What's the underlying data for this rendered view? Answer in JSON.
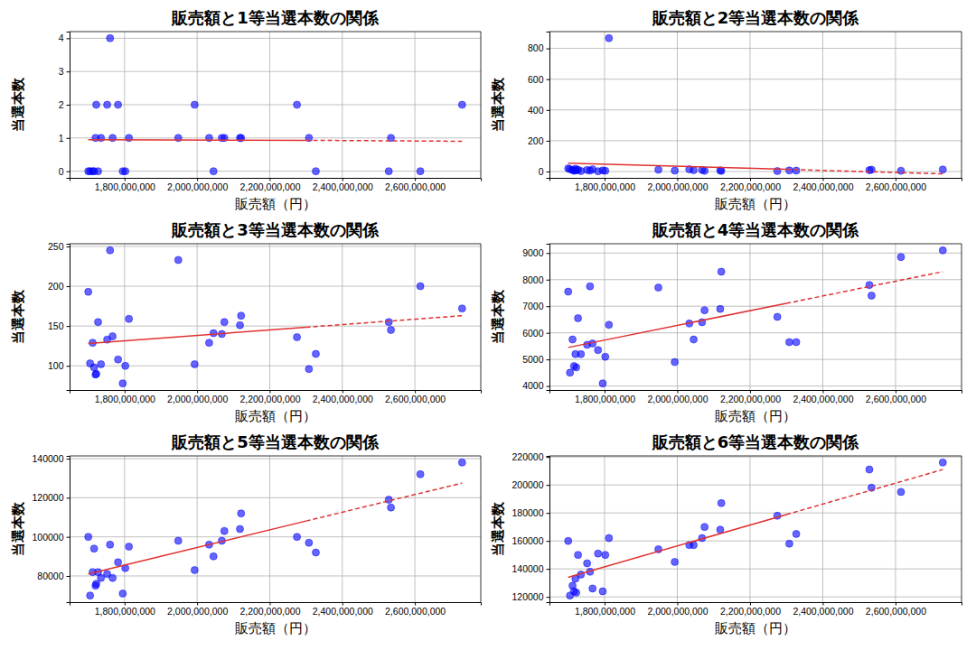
{
  "chart_data": [
    {
      "type": "scatter",
      "title": "販売額と1等当選本数の関係",
      "x_label": "販売額（円）",
      "y_label": "当選本数",
      "x": [
        1700000000,
        1705000000,
        1712000000,
        1716000000,
        1720000000,
        1722000000,
        1727000000,
        1735000000,
        1752000000,
        1760000000,
        1767000000,
        1782000000,
        1795000000,
        1802000000,
        1812000000,
        1948000000,
        1993000000,
        2033000000,
        2045000000,
        2068000000,
        2075000000,
        2118000000,
        2121000000,
        2275000000,
        2308000000,
        2327000000,
        2528000000,
        2534000000,
        2615000000,
        2730000000
      ],
      "series": [
        {
          "type": "scatter",
          "color": "#0000ff",
          "marker": "circle",
          "values": [
            0,
            0,
            0,
            0,
            1,
            2,
            0,
            1,
            2,
            4,
            1,
            2,
            0,
            0,
            1,
            1,
            2,
            1,
            0,
            1,
            1,
            1,
            1,
            2,
            1,
            0,
            0,
            1,
            0,
            2
          ]
        },
        {
          "type": "line",
          "color": "#e03030",
          "line_style": "solid",
          "x": [
            1700000000,
            2300000000
          ],
          "values": [
            0.95,
            0.93
          ]
        },
        {
          "type": "line",
          "color": "#e03030",
          "line_style": "dashed",
          "x": [
            2300000000,
            2730000000
          ],
          "values": [
            0.93,
            0.9
          ]
        }
      ],
      "xlim": [
        1648500000,
        2781500000
      ],
      "xticks": [
        {
          "value": 1800000000,
          "label": "1,800,000,000"
        },
        {
          "value": 2000000000,
          "label": "2,000,000,000"
        },
        {
          "value": 2200000000,
          "label": "2,200,000,000"
        },
        {
          "value": 2400000000,
          "label": "2,400,000,000"
        },
        {
          "value": 2600000000,
          "label": "2,600,000,000"
        }
      ],
      "ylim": [
        -0.2,
        4.2
      ],
      "yticks": [
        0,
        1,
        2,
        3,
        4
      ],
      "grid": true
    },
    {
      "type": "scatter",
      "title": "販売額と2等当選本数の関係",
      "x_label": "販売額（円）",
      "y_label": "当選本数",
      "x": [
        1700000000,
        1705000000,
        1712000000,
        1716000000,
        1720000000,
        1722000000,
        1727000000,
        1735000000,
        1752000000,
        1760000000,
        1767000000,
        1782000000,
        1795000000,
        1802000000,
        1812000000,
        1948000000,
        1993000000,
        2033000000,
        2045000000,
        2068000000,
        2075000000,
        2118000000,
        2121000000,
        2275000000,
        2308000000,
        2327000000,
        2528000000,
        2534000000,
        2615000000,
        2730000000
      ],
      "series": [
        {
          "type": "scatter",
          "color": "#0000ff",
          "marker": "circle",
          "values": [
            20,
            15,
            10,
            5,
            18,
            8,
            12,
            3,
            10,
            6,
            14,
            2,
            7,
            5,
            866,
            12,
            6,
            14,
            9,
            10,
            5,
            8,
            4,
            3,
            7,
            6,
            9,
            12,
            5,
            13
          ]
        },
        {
          "type": "line",
          "color": "#e03030",
          "line_style": "solid",
          "x": [
            1700000000,
            2300000000
          ],
          "values": [
            55,
            14
          ]
        },
        {
          "type": "line",
          "color": "#e03030",
          "line_style": "dashed",
          "x": [
            2300000000,
            2730000000
          ],
          "values": [
            14,
            -15
          ]
        }
      ],
      "xlim": [
        1648500000,
        2781500000
      ],
      "xticks": [
        {
          "value": 1800000000,
          "label": "1,800,000,000"
        },
        {
          "value": 2000000000,
          "label": "2,000,000,000"
        },
        {
          "value": 2200000000,
          "label": "2,200,000,000"
        },
        {
          "value": 2400000000,
          "label": "2,400,000,000"
        },
        {
          "value": 2600000000,
          "label": "2,600,000,000"
        }
      ],
      "ylim": [
        -41,
        909
      ],
      "yticks": [
        0,
        200,
        400,
        600,
        800
      ],
      "grid": true
    },
    {
      "type": "scatter",
      "title": "販売額と3等当選本数の関係",
      "x_label": "販売額（円）",
      "y_label": "当選本数",
      "x": [
        1700000000,
        1705000000,
        1712000000,
        1716000000,
        1720000000,
        1722000000,
        1727000000,
        1735000000,
        1752000000,
        1760000000,
        1767000000,
        1782000000,
        1795000000,
        1802000000,
        1812000000,
        1948000000,
        1993000000,
        2033000000,
        2045000000,
        2068000000,
        2075000000,
        2118000000,
        2121000000,
        2275000000,
        2308000000,
        2327000000,
        2528000000,
        2534000000,
        2615000000,
        2730000000
      ],
      "series": [
        {
          "type": "scatter",
          "color": "#0000ff",
          "marker": "circle",
          "values": [
            193,
            103,
            129,
            98,
            89,
            90,
            155,
            102,
            133,
            245,
            137,
            108,
            78,
            100,
            159,
            233,
            102,
            129,
            141,
            140,
            155,
            151,
            163,
            136,
            96,
            115,
            155,
            145,
            200,
            172
          ]
        },
        {
          "type": "line",
          "color": "#e03030",
          "line_style": "solid",
          "x": [
            1700000000,
            2300000000
          ],
          "values": [
            128,
            148.4
          ]
        },
        {
          "type": "line",
          "color": "#e03030",
          "line_style": "dashed",
          "x": [
            2300000000,
            2730000000
          ],
          "values": [
            148.4,
            163
          ]
        }
      ],
      "xlim": [
        1648500000,
        2781500000
      ],
      "xticks": [
        {
          "value": 1800000000,
          "label": "1,800,000,000"
        },
        {
          "value": 2000000000,
          "label": "2,000,000,000"
        },
        {
          "value": 2200000000,
          "label": "2,200,000,000"
        },
        {
          "value": 2400000000,
          "label": "2,400,000,000"
        },
        {
          "value": 2600000000,
          "label": "2,600,000,000"
        }
      ],
      "ylim": [
        69.65,
        253.35
      ],
      "yticks": [
        100,
        150,
        200,
        250
      ],
      "grid": true
    },
    {
      "type": "scatter",
      "title": "販売額と4等当選本数の関係",
      "x_label": "販売額（円）",
      "y_label": "当選本数",
      "x": [
        1700000000,
        1705000000,
        1712000000,
        1716000000,
        1720000000,
        1722000000,
        1727000000,
        1735000000,
        1752000000,
        1760000000,
        1767000000,
        1782000000,
        1795000000,
        1802000000,
        1812000000,
        1948000000,
        1993000000,
        2033000000,
        2045000000,
        2068000000,
        2075000000,
        2118000000,
        2121000000,
        2275000000,
        2308000000,
        2327000000,
        2528000000,
        2534000000,
        2615000000,
        2730000000
      ],
      "series": [
        {
          "type": "scatter",
          "color": "#0000ff",
          "marker": "circle",
          "values": [
            7550,
            4500,
            5750,
            4750,
            5200,
            4700,
            6550,
            5200,
            5550,
            7750,
            5600,
            5350,
            4100,
            5100,
            6300,
            7700,
            4900,
            6350,
            5750,
            6400,
            6850,
            6900,
            8300,
            6600,
            5650,
            5650,
            7800,
            7400,
            8850,
            9100
          ]
        },
        {
          "type": "line",
          "color": "#e03030",
          "line_style": "solid",
          "x": [
            1700000000,
            2300000000
          ],
          "values": [
            5450,
            7110
          ]
        },
        {
          "type": "line",
          "color": "#e03030",
          "line_style": "dashed",
          "x": [
            2300000000,
            2730000000
          ],
          "values": [
            7110,
            8300
          ]
        }
      ],
      "xlim": [
        1648500000,
        2781500000
      ],
      "xticks": [
        {
          "value": 1800000000,
          "label": "1,800,000,000"
        },
        {
          "value": 2000000000,
          "label": "2,000,000,000"
        },
        {
          "value": 2200000000,
          "label": "2,200,000,000"
        },
        {
          "value": 2400000000,
          "label": "2,400,000,000"
        },
        {
          "value": 2600000000,
          "label": "2,600,000,000"
        }
      ],
      "ylim": [
        3850,
        9350
      ],
      "yticks": [
        4000,
        5000,
        6000,
        7000,
        8000,
        9000
      ],
      "grid": true
    },
    {
      "type": "scatter",
      "title": "販売額と5等当選本数の関係",
      "x_label": "販売額（円）",
      "y_label": "当選本数",
      "x": [
        1700000000,
        1705000000,
        1712000000,
        1716000000,
        1720000000,
        1722000000,
        1727000000,
        1735000000,
        1752000000,
        1760000000,
        1767000000,
        1782000000,
        1795000000,
        1802000000,
        1812000000,
        1948000000,
        1993000000,
        2033000000,
        2045000000,
        2068000000,
        2075000000,
        2118000000,
        2121000000,
        2275000000,
        2308000000,
        2327000000,
        2528000000,
        2534000000,
        2615000000,
        2730000000
      ],
      "series": [
        {
          "type": "scatter",
          "color": "#0000ff",
          "marker": "circle",
          "values": [
            100000,
            70000,
            82000,
            94000,
            75000,
            76000,
            82000,
            79000,
            81000,
            96000,
            79000,
            87000,
            71000,
            84000,
            95000,
            98000,
            83000,
            96000,
            90000,
            98000,
            103000,
            104000,
            112000,
            100000,
            97000,
            92000,
            119000,
            115000,
            132000,
            138000
          ]
        },
        {
          "type": "line",
          "color": "#e03030",
          "line_style": "solid",
          "x": [
            1700000000,
            2300000000
          ],
          "values": [
            81000,
            108090
          ]
        },
        {
          "type": "line",
          "color": "#e03030",
          "line_style": "dashed",
          "x": [
            2300000000,
            2730000000
          ],
          "values": [
            108090,
            127500
          ]
        }
      ],
      "xlim": [
        1648500000,
        2781500000
      ],
      "xticks": [
        {
          "value": 1800000000,
          "label": "1,800,000,000"
        },
        {
          "value": 2000000000,
          "label": "2,000,000,000"
        },
        {
          "value": 2200000000,
          "label": "2,200,000,000"
        },
        {
          "value": 2400000000,
          "label": "2,400,000,000"
        },
        {
          "value": 2600000000,
          "label": "2,600,000,000"
        }
      ],
      "ylim": [
        66600,
        141400
      ],
      "yticks": [
        80000,
        100000,
        120000,
        140000
      ],
      "grid": true
    },
    {
      "type": "scatter",
      "title": "販売額と6等当選本数の関係",
      "x_label": "販売額（円）",
      "y_label": "当選本数",
      "x": [
        1700000000,
        1705000000,
        1712000000,
        1716000000,
        1720000000,
        1722000000,
        1727000000,
        1735000000,
        1752000000,
        1760000000,
        1767000000,
        1782000000,
        1795000000,
        1802000000,
        1812000000,
        1948000000,
        1993000000,
        2033000000,
        2045000000,
        2068000000,
        2075000000,
        2118000000,
        2121000000,
        2275000000,
        2308000000,
        2327000000,
        2528000000,
        2534000000,
        2615000000,
        2730000000
      ],
      "series": [
        {
          "type": "scatter",
          "color": "#0000ff",
          "marker": "circle",
          "values": [
            160000,
            121000,
            128000,
            124000,
            133000,
            123000,
            150000,
            136000,
            144000,
            138000,
            126000,
            151000,
            124000,
            150000,
            162000,
            154000,
            145000,
            157000,
            157000,
            162000,
            170000,
            168000,
            187000,
            178000,
            158000,
            165000,
            211000,
            198000,
            195000,
            216000
          ]
        },
        {
          "type": "line",
          "color": "#e03030",
          "line_style": "solid",
          "x": [
            1700000000,
            2300000000
          ],
          "values": [
            134000,
            178850
          ]
        },
        {
          "type": "line",
          "color": "#e03030",
          "line_style": "dashed",
          "x": [
            2300000000,
            2730000000
          ],
          "values": [
            178850,
            211000
          ]
        }
      ],
      "xlim": [
        1648500000,
        2781500000
      ],
      "xticks": [
        {
          "value": 1800000000,
          "label": "1,800,000,000"
        },
        {
          "value": 2000000000,
          "label": "2,000,000,000"
        },
        {
          "value": 2200000000,
          "label": "2,200,000,000"
        },
        {
          "value": 2400000000,
          "label": "2,400,000,000"
        },
        {
          "value": 2600000000,
          "label": "2,600,000,000"
        }
      ],
      "ylim": [
        116250,
        220750
      ],
      "yticks": [
        120000,
        140000,
        160000,
        180000,
        200000,
        220000
      ],
      "grid": true
    }
  ]
}
